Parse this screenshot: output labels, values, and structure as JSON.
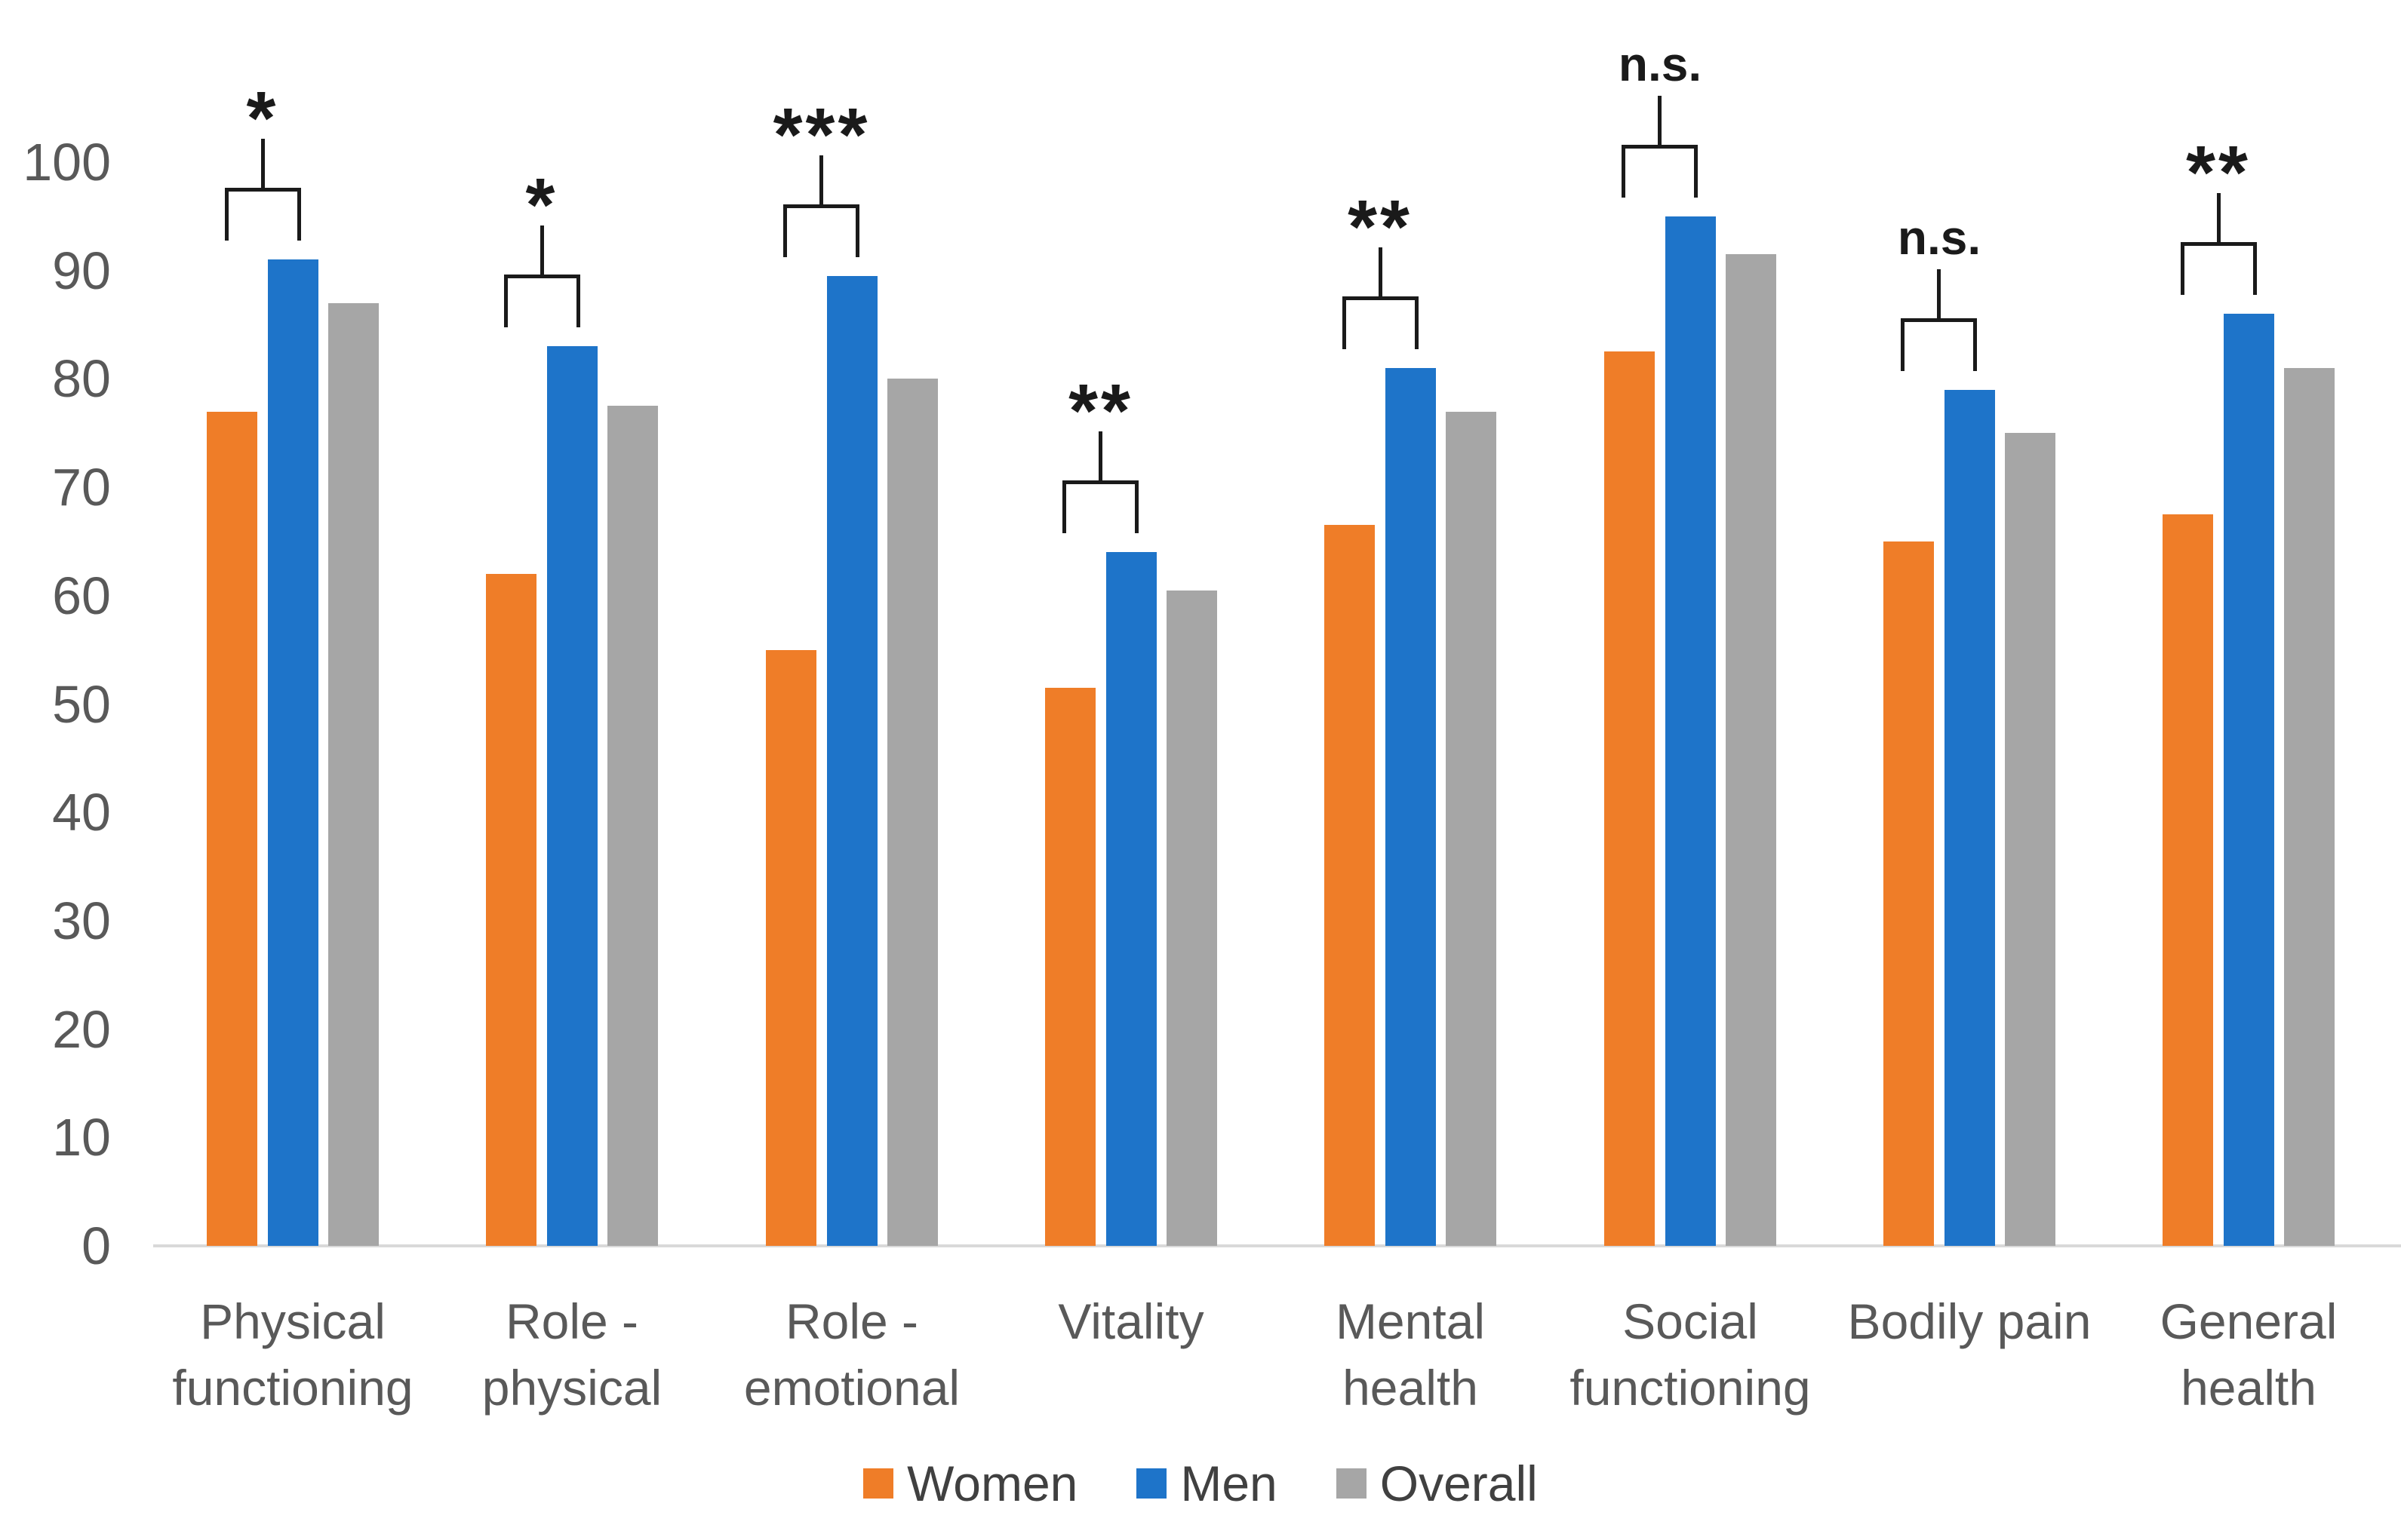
{
  "chart_data": {
    "type": "bar",
    "title": "",
    "xlabel": "",
    "ylabel": "",
    "categories": [
      {
        "id": "physical-functioning",
        "lines": [
          "Physical",
          "functioning"
        ]
      },
      {
        "id": "role-physical",
        "lines": [
          "Role -",
          "physical"
        ]
      },
      {
        "id": "role-emotional",
        "lines": [
          "Role -",
          "emotional"
        ]
      },
      {
        "id": "vitality",
        "lines": [
          "Vitality"
        ]
      },
      {
        "id": "mental-health",
        "lines": [
          "Mental",
          "health"
        ]
      },
      {
        "id": "social-functioning",
        "lines": [
          "Social",
          "functioning"
        ]
      },
      {
        "id": "bodily-pain",
        "lines": [
          "Bodily pain"
        ]
      },
      {
        "id": "general-health",
        "lines": [
          "General",
          "health"
        ]
      }
    ],
    "series": [
      {
        "name": "Women",
        "color": "#EF7D28",
        "values": [
          77,
          62,
          55,
          51.5,
          66.5,
          82.5,
          65,
          67.5
        ]
      },
      {
        "name": "Men",
        "color": "#1E74C9",
        "values": [
          91,
          83,
          89.5,
          64,
          81,
          95,
          79,
          86
        ]
      },
      {
        "name": "Overall",
        "color": "#A6A6A6",
        "values": [
          87,
          77.5,
          80,
          60.5,
          77,
          91.5,
          75,
          81
        ]
      }
    ],
    "significance": [
      "*",
      "*",
      "***",
      "**",
      "**",
      "n.s.",
      "n.s.",
      "**"
    ],
    "y_axis": {
      "min": 0,
      "max": 100,
      "step": 10,
      "tick_labels": [
        "0",
        "10",
        "20",
        "30",
        "40",
        "50",
        "60",
        "70",
        "80",
        "90",
        "100"
      ]
    },
    "legend": {
      "position": "bottom",
      "entries": [
        "Women",
        "Men",
        "Overall"
      ]
    },
    "grid": false
  },
  "styles": {
    "background": "#FFFFFF",
    "axis_line_color": "#D9D9D9",
    "tick_label_color": "#595959",
    "category_label_color": "#595959",
    "legend_text_color": "#404040",
    "significance_color": "#1A1A1A"
  }
}
